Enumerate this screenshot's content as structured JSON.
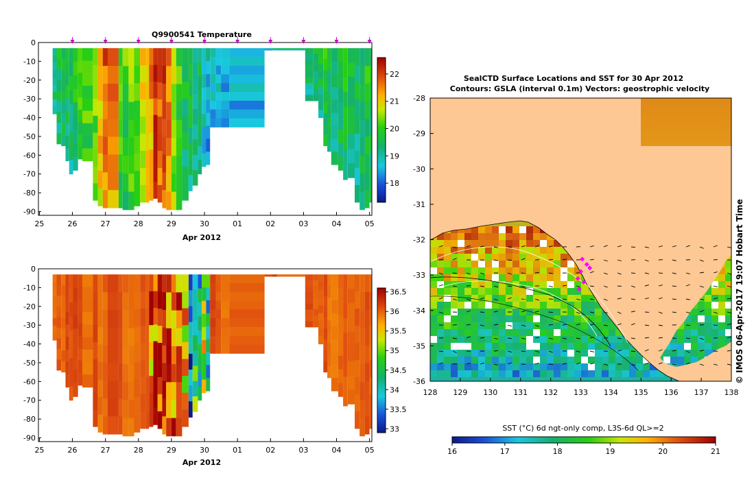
{
  "chart_data": [
    {
      "type": "heatmap",
      "title": "Q9900541  Temperature",
      "xlabel": "Apr 2012",
      "ylabel": "",
      "xticks": [
        "25",
        "26",
        "27",
        "28",
        "29",
        "30",
        "01",
        "02",
        "03",
        "04",
        "05"
      ],
      "yticks": [
        "0",
        "-10",
        "-20",
        "-30",
        "-40",
        "-50",
        "-60",
        "-70",
        "-80",
        "-90"
      ],
      "ylim": [
        -92,
        0
      ],
      "colorbar": {
        "ticks": [
          "18",
          "19",
          "20",
          "21",
          "22"
        ],
        "range": [
          17.3,
          22.6
        ]
      },
      "profiles_start": [
        [
          25.4,
          -38
        ],
        [
          25.52,
          -54
        ],
        [
          25.66,
          -55
        ],
        [
          25.79,
          -63
        ],
        [
          25.9,
          -70
        ],
        [
          26.02,
          -68
        ],
        [
          26.17,
          -62
        ],
        [
          26.3,
          -63
        ],
        [
          26.62,
          -84
        ],
        [
          26.77,
          -87
        ],
        [
          26.92,
          -88
        ],
        [
          27.07,
          -88
        ],
        [
          27.4,
          -88
        ],
        [
          27.52,
          -89
        ],
        [
          27.7,
          -89
        ],
        [
          27.87,
          -87
        ],
        [
          28.05,
          -85
        ],
        [
          28.22,
          -85
        ],
        [
          28.32,
          -84
        ],
        [
          28.45,
          -83
        ],
        [
          28.58,
          -85
        ],
        [
          28.72,
          -88
        ],
        [
          28.84,
          -89
        ],
        [
          29.0,
          -89
        ],
        [
          29.14,
          -89
        ],
        [
          29.32,
          -84
        ],
        [
          29.52,
          -79
        ],
        [
          29.64,
          -76
        ],
        [
          29.8,
          -70
        ],
        [
          29.92,
          -66
        ],
        [
          30.05,
          -65
        ],
        [
          30.17,
          -45
        ],
        [
          30.35,
          -45
        ],
        [
          30.5,
          -45
        ],
        [
          30.75,
          -45
        ],
        [
          31.82,
          -4
        ],
        [
          32.05,
          -4
        ],
        [
          32.2,
          -4
        ],
        [
          33.05,
          -31
        ],
        [
          33.3,
          -31
        ],
        [
          33.45,
          -40
        ],
        [
          33.6,
          -55
        ],
        [
          33.72,
          -58
        ],
        [
          33.84,
          -65
        ],
        [
          34.05,
          -68
        ],
        [
          34.2,
          -73
        ],
        [
          34.34,
          -72
        ],
        [
          34.55,
          -85
        ],
        [
          34.7,
          -89
        ],
        [
          34.86,
          -88
        ],
        [
          35.0,
          -85
        ]
      ],
      "profile_temps_sample": [
        19.5,
        19.6,
        19.8,
        19.7,
        19.6,
        19.9,
        20.1,
        20.3,
        20.5,
        21.3,
        21.8,
        21.6,
        20.2,
        20.1,
        20.4,
        20.3,
        20.9,
        21.2,
        21.5,
        22.3,
        21.9,
        22.1,
        21.7,
        20.8,
        20.1,
        19.7,
        19.6,
        19.5,
        19.4,
        18.9,
        18.8,
        18.8,
        18.8,
        18.8,
        18.8,
        18.9,
        19.0,
        19.3,
        19.5,
        19.6,
        19.7,
        19.8,
        19.7,
        19.6,
        19.7,
        19.8,
        19.7
      ]
    },
    {
      "type": "heatmap",
      "title": "",
      "xlabel": "Apr 2012",
      "ylabel": "",
      "xticks": [
        "25",
        "26",
        "27",
        "28",
        "29",
        "30",
        "01",
        "02",
        "03",
        "04",
        "05"
      ],
      "yticks": [
        "0",
        "-10",
        "-20",
        "-30",
        "-40",
        "-50",
        "-60",
        "-70",
        "-80",
        "-90"
      ],
      "ylim": [
        -92,
        0
      ],
      "colorbar": {
        "ticks": [
          "33",
          "33.5",
          "34",
          "34.5",
          "35",
          "35.5",
          "36",
          "36.5"
        ],
        "range": [
          32.9,
          36.6
        ]
      },
      "salinity_sample": [
        36.0,
        36.1,
        36.2,
        36.1,
        36.0,
        35.9,
        35.6,
        33.2,
        34.6,
        33.9,
        35.1,
        34.2,
        33.6,
        34.8,
        35.8,
        36.2,
        36.1,
        36.0,
        35.9
      ]
    },
    {
      "type": "heatmap",
      "title": "SealCTD Surface Locations and SST for 30 Apr 2012",
      "subtitle": "Contours: GSLA (interval 0.1m) Vectors: geostrophic velocity",
      "xticks": [
        "128",
        "129",
        "130",
        "131",
        "132",
        "133",
        "134",
        "135",
        "136",
        "137",
        "138"
      ],
      "yticks": [
        "-28",
        "-29",
        "-30",
        "-31",
        "-32",
        "-33",
        "-34",
        "-35",
        "-36"
      ],
      "xlim": [
        128,
        138
      ],
      "ylim": [
        -36,
        -28
      ],
      "colorbar": {
        "label": "SST (°C) 6d ngt-only comp, L3S-6d QL>=2",
        "ticks": [
          "16",
          "17",
          "18",
          "19",
          "20",
          "21"
        ],
        "range": [
          16,
          21
        ]
      },
      "seal_locations": [
        [
          133.05,
          -32.55
        ],
        [
          133.2,
          -32.7
        ],
        [
          133.0,
          -32.9
        ],
        [
          132.9,
          -33.1
        ],
        [
          133.1,
          -33.2
        ],
        [
          132.95,
          -33.4
        ],
        [
          133.3,
          -32.8
        ]
      ],
      "side_text": "© IMOS 06-Apr-2017 19:07 Hobart Time"
    }
  ],
  "colors": {
    "land": "#fdc894",
    "marker": "#ff00ff"
  }
}
